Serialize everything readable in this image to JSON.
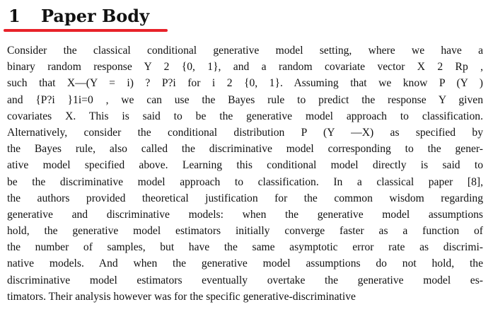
{
  "section": {
    "number": "1",
    "title": "Paper Body",
    "accent_color": "#e8222a"
  },
  "body": {
    "lines": [
      "Consider the classical conditional generative model setting, where we have a",
      "binary random response Y 2 {0, 1}, and a random covariate vector X 2 Rp ,",
      "such that X—(Y = i) ? P?i for i 2 {0, 1}. Assuming that we know P (Y )",
      "and {P?i }1i=0 , we can use the Bayes rule to predict the response Y given",
      "covariates X. This is said to be the generative model approach to classification.",
      "Alternatively, consider the conditional distribution P (Y —X) as specified by",
      "the Bayes rule, also called the discriminative model corresponding to the gener-",
      "ative model specified above. Learning this conditional model directly is said to",
      "be the discriminative model approach to classification. In a classical paper [8],",
      "the authors provided theoretical justification for the common wisdom regarding",
      "generative and discriminative models: when the generative model assumptions",
      "hold, the generative model estimators initially converge faster as a function of",
      "the number of samples, but have the same asymptotic error rate as discrimi-",
      "native models. And when the generative model assumptions do not hold, the",
      "discriminative model estimators eventually overtake the generative model es-",
      "timators. Their analysis however was for the specific generative-discriminative"
    ]
  }
}
